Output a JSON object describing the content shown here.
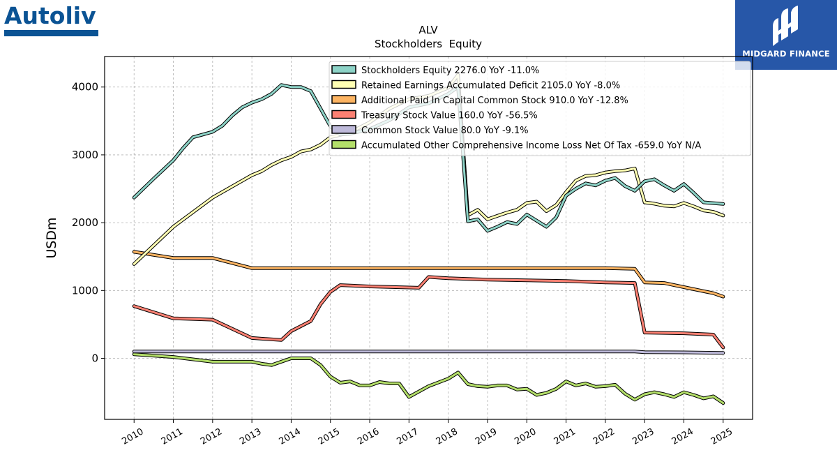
{
  "branding": {
    "company_logo_text": "Autoliv",
    "finance_logo_text": "MIDGARD FINANCE"
  },
  "chart_data": {
    "type": "line",
    "title": "ALV",
    "subtitle": "Stockholders  Equity",
    "xlabel": "",
    "ylabel": "USDm",
    "xlim": [
      2009.25,
      2025.75
    ],
    "ylim": [
      -900,
      4450
    ],
    "x_ticks": [
      "2010",
      "2011",
      "2012",
      "2013",
      "2014",
      "2015",
      "2016",
      "2017",
      "2018",
      "2019",
      "2020",
      "2021",
      "2022",
      "2023",
      "2024",
      "2025"
    ],
    "y_ticks": [
      0,
      1000,
      2000,
      3000,
      4000
    ],
    "grid": true,
    "legend_position": "top-right",
    "series": [
      {
        "name": "Stockholders Equity  2276.0 YoY -11.0%",
        "color": "#8dd3c7",
        "points": [
          [
            2010,
            2370
          ],
          [
            2010.5,
            2650
          ],
          [
            2011,
            2920
          ],
          [
            2011.25,
            3100
          ],
          [
            2011.5,
            3260
          ],
          [
            2011.75,
            3300
          ],
          [
            2012,
            3340
          ],
          [
            2012.25,
            3430
          ],
          [
            2012.5,
            3580
          ],
          [
            2012.75,
            3700
          ],
          [
            2013,
            3770
          ],
          [
            2013.25,
            3820
          ],
          [
            2013.5,
            3900
          ],
          [
            2013.75,
            4030
          ],
          [
            2014,
            4000
          ],
          [
            2014.25,
            4000
          ],
          [
            2014.5,
            3940
          ],
          [
            2014.75,
            3680
          ],
          [
            2015,
            3420
          ],
          [
            2015.25,
            3300
          ],
          [
            2015.5,
            3310
          ],
          [
            2016,
            3380
          ],
          [
            2016.5,
            3510
          ],
          [
            2017,
            3700
          ],
          [
            2017.5,
            3760
          ],
          [
            2018,
            3900
          ],
          [
            2018.25,
            4000
          ],
          [
            2018.5,
            2020
          ],
          [
            2018.75,
            2050
          ],
          [
            2019,
            1880
          ],
          [
            2019.25,
            1940
          ],
          [
            2019.5,
            2010
          ],
          [
            2019.75,
            1980
          ],
          [
            2020,
            2120
          ],
          [
            2020.25,
            2030
          ],
          [
            2020.5,
            1940
          ],
          [
            2020.75,
            2080
          ],
          [
            2021,
            2400
          ],
          [
            2021.25,
            2500
          ],
          [
            2021.5,
            2580
          ],
          [
            2021.75,
            2550
          ],
          [
            2022,
            2620
          ],
          [
            2022.25,
            2660
          ],
          [
            2022.5,
            2540
          ],
          [
            2022.75,
            2470
          ],
          [
            2023,
            2610
          ],
          [
            2023.25,
            2640
          ],
          [
            2023.5,
            2550
          ],
          [
            2023.75,
            2470
          ],
          [
            2024,
            2570
          ],
          [
            2024.25,
            2440
          ],
          [
            2024.5,
            2300
          ],
          [
            2025,
            2276
          ]
        ]
      },
      {
        "name": "Retained Earnings Accumulated Deficit  2105.0 YoY -8.0%",
        "color": "#ffffb3",
        "points": [
          [
            2010,
            1390
          ],
          [
            2011,
            1940
          ],
          [
            2012,
            2370
          ],
          [
            2013,
            2700
          ],
          [
            2013.25,
            2760
          ],
          [
            2013.5,
            2850
          ],
          [
            2013.75,
            2920
          ],
          [
            2014,
            2970
          ],
          [
            2014.25,
            3050
          ],
          [
            2014.5,
            3080
          ],
          [
            2014.75,
            3150
          ],
          [
            2015,
            3260
          ],
          [
            2015.5,
            3330
          ],
          [
            2016,
            3480
          ],
          [
            2016.5,
            3680
          ],
          [
            2017,
            3820
          ],
          [
            2017.5,
            3870
          ],
          [
            2018,
            3990
          ],
          [
            2018.25,
            4180
          ],
          [
            2018.5,
            2110
          ],
          [
            2018.75,
            2190
          ],
          [
            2019,
            2050
          ],
          [
            2019.25,
            2100
          ],
          [
            2019.5,
            2150
          ],
          [
            2019.75,
            2190
          ],
          [
            2020,
            2290
          ],
          [
            2020.25,
            2310
          ],
          [
            2020.5,
            2170
          ],
          [
            2020.75,
            2260
          ],
          [
            2021,
            2450
          ],
          [
            2021.25,
            2620
          ],
          [
            2021.5,
            2690
          ],
          [
            2021.75,
            2700
          ],
          [
            2022,
            2740
          ],
          [
            2022.25,
            2760
          ],
          [
            2022.5,
            2770
          ],
          [
            2022.75,
            2800
          ],
          [
            2023,
            2300
          ],
          [
            2023.25,
            2280
          ],
          [
            2023.5,
            2250
          ],
          [
            2023.75,
            2240
          ],
          [
            2024,
            2290
          ],
          [
            2024.25,
            2240
          ],
          [
            2024.5,
            2180
          ],
          [
            2024.75,
            2160
          ],
          [
            2025,
            2105
          ]
        ]
      },
      {
        "name": "Additional Paid In Capital Common Stock  910.0 YoY -12.8%",
        "color": "#fdb462",
        "points": [
          [
            2010,
            1570
          ],
          [
            2011,
            1480
          ],
          [
            2012,
            1480
          ],
          [
            2013,
            1330
          ],
          [
            2014,
            1330
          ],
          [
            2015,
            1330
          ],
          [
            2016,
            1330
          ],
          [
            2017,
            1330
          ],
          [
            2018,
            1330
          ],
          [
            2019,
            1330
          ],
          [
            2020,
            1330
          ],
          [
            2021,
            1330
          ],
          [
            2022,
            1330
          ],
          [
            2022.75,
            1320
          ],
          [
            2023,
            1120
          ],
          [
            2023.5,
            1110
          ],
          [
            2024,
            1050
          ],
          [
            2024.75,
            960
          ],
          [
            2025,
            910
          ]
        ]
      },
      {
        "name": "Treasury Stock Value  160.0 YoY -56.5%",
        "color": "#fb8072",
        "points": [
          [
            2010,
            770
          ],
          [
            2011,
            590
          ],
          [
            2012,
            570
          ],
          [
            2013,
            300
          ],
          [
            2013.75,
            270
          ],
          [
            2014,
            400
          ],
          [
            2014.5,
            550
          ],
          [
            2014.75,
            800
          ],
          [
            2015,
            980
          ],
          [
            2015.25,
            1080
          ],
          [
            2016,
            1060
          ],
          [
            2017.25,
            1040
          ],
          [
            2017.5,
            1200
          ],
          [
            2018,
            1180
          ],
          [
            2019,
            1160
          ],
          [
            2020,
            1150
          ],
          [
            2021,
            1140
          ],
          [
            2022,
            1120
          ],
          [
            2022.75,
            1110
          ],
          [
            2023,
            380
          ],
          [
            2024,
            370
          ],
          [
            2024.75,
            350
          ],
          [
            2025,
            160
          ]
        ]
      },
      {
        "name": "Common Stock Value  80.0 YoY -9.1%",
        "color": "#bebada",
        "points": [
          [
            2010,
            100
          ],
          [
            2011,
            100
          ],
          [
            2012,
            100
          ],
          [
            2013,
            100
          ],
          [
            2014,
            100
          ],
          [
            2015,
            100
          ],
          [
            2016,
            100
          ],
          [
            2017,
            100
          ],
          [
            2018,
            100
          ],
          [
            2019,
            100
          ],
          [
            2020,
            100
          ],
          [
            2021,
            100
          ],
          [
            2022,
            100
          ],
          [
            2022.75,
            100
          ],
          [
            2023,
            90
          ],
          [
            2024,
            88
          ],
          [
            2025,
            80
          ]
        ]
      },
      {
        "name": "Accumulated Other Comprehensive Income Loss Net Of Tax  -659.0 YoY N/A",
        "color": "#b3de69",
        "points": [
          [
            2010,
            60
          ],
          [
            2011,
            20
          ],
          [
            2012,
            -50
          ],
          [
            2013,
            -50
          ],
          [
            2013.25,
            -80
          ],
          [
            2013.5,
            -100
          ],
          [
            2014,
            0
          ],
          [
            2014.5,
            0
          ],
          [
            2014.75,
            -100
          ],
          [
            2015,
            -270
          ],
          [
            2015.25,
            -360
          ],
          [
            2015.5,
            -340
          ],
          [
            2015.75,
            -400
          ],
          [
            2016,
            -400
          ],
          [
            2016.25,
            -350
          ],
          [
            2016.5,
            -370
          ],
          [
            2016.75,
            -370
          ],
          [
            2017,
            -570
          ],
          [
            2017.5,
            -410
          ],
          [
            2018,
            -300
          ],
          [
            2018.25,
            -210
          ],
          [
            2018.5,
            -380
          ],
          [
            2018.75,
            -410
          ],
          [
            2019,
            -420
          ],
          [
            2019.25,
            -400
          ],
          [
            2019.5,
            -400
          ],
          [
            2019.75,
            -460
          ],
          [
            2020,
            -450
          ],
          [
            2020.25,
            -540
          ],
          [
            2020.5,
            -510
          ],
          [
            2020.75,
            -450
          ],
          [
            2021,
            -340
          ],
          [
            2021.25,
            -400
          ],
          [
            2021.5,
            -370
          ],
          [
            2021.75,
            -420
          ],
          [
            2022,
            -410
          ],
          [
            2022.25,
            -390
          ],
          [
            2022.5,
            -520
          ],
          [
            2022.75,
            -610
          ],
          [
            2023,
            -530
          ],
          [
            2023.25,
            -500
          ],
          [
            2023.5,
            -530
          ],
          [
            2023.75,
            -570
          ],
          [
            2024,
            -500
          ],
          [
            2024.25,
            -540
          ],
          [
            2024.5,
            -590
          ],
          [
            2024.75,
            -560
          ],
          [
            2025,
            -659
          ]
        ]
      }
    ]
  }
}
